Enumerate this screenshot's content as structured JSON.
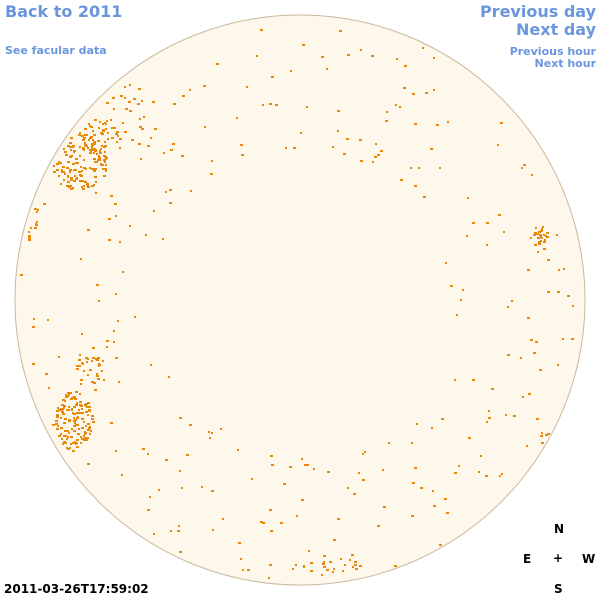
{
  "nav": {
    "back": "Back to 2011",
    "facular": "See facular data",
    "previous_day": "Previous day",
    "next_day": "Next day",
    "previous_hour": "Previous hour",
    "next_hour": "Next hour"
  },
  "timestamp": "2011-03-26T17:59:02",
  "compass": {
    "north": "N",
    "east": "E",
    "center": "+",
    "west": "W",
    "south": "S"
  }
}
